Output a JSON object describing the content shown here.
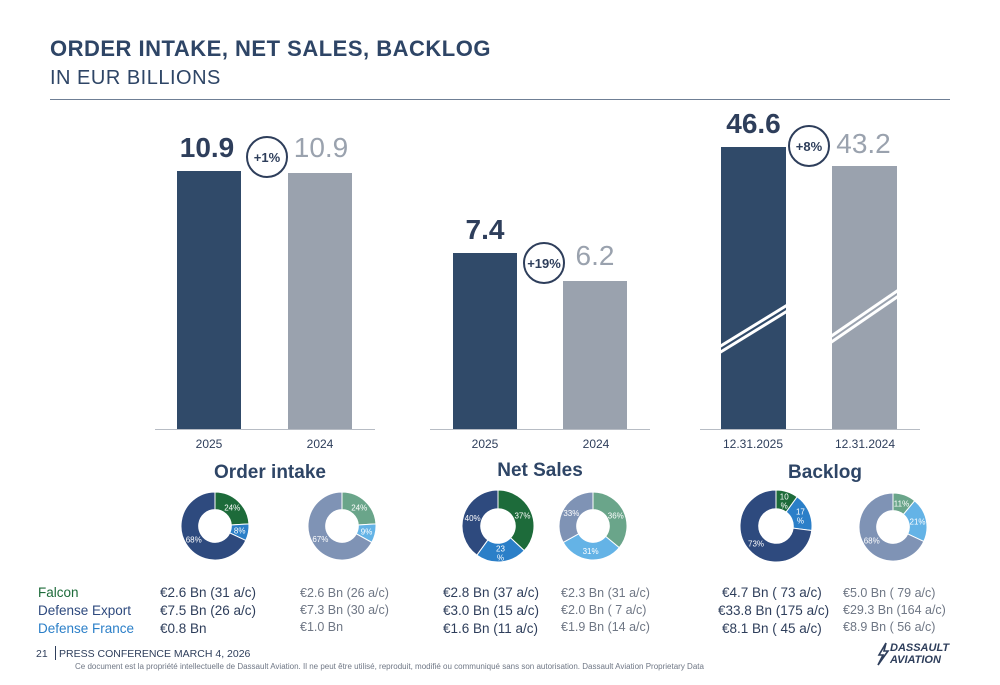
{
  "header": {
    "title": "ORDER INTAKE, NET SALES, BACKLOG",
    "subtitle": "IN EUR BILLIONS"
  },
  "chart_data": [
    {
      "type": "bar",
      "name": "Order intake",
      "categories": [
        "2025",
        "2024"
      ],
      "values": [
        10.9,
        10.9
      ],
      "value_labels": [
        "10.9",
        "10.9"
      ],
      "change": "+1%"
    },
    {
      "type": "bar",
      "name": "Net Sales",
      "categories": [
        "2025",
        "2024"
      ],
      "values": [
        7.4,
        6.2
      ],
      "value_labels": [
        "7.4",
        "6.2"
      ],
      "change": "+19%"
    },
    {
      "type": "bar",
      "name": "Backlog",
      "categories": [
        "12.31.2025",
        "12.31.2024"
      ],
      "values": [
        46.6,
        43.2
      ],
      "value_labels": [
        "46.6",
        "43.2"
      ],
      "change": "+8%",
      "axis_break": true
    },
    {
      "type": "pie",
      "chart": "Order intake 2025",
      "slices": [
        {
          "label": "24%",
          "value": 24
        },
        {
          "label": "8%",
          "value": 8
        },
        {
          "label": "68%",
          "value": 68
        }
      ]
    },
    {
      "type": "pie",
      "chart": "Order intake 2024",
      "slices": [
        {
          "label": "24%",
          "value": 24
        },
        {
          "label": "9%",
          "value": 9
        },
        {
          "label": "67%",
          "value": 67
        }
      ]
    },
    {
      "type": "pie",
      "chart": "Net Sales 2025",
      "slices": [
        {
          "label": "37%",
          "value": 37
        },
        {
          "label": "23 %",
          "value": 23
        },
        {
          "label": "40%",
          "value": 40
        }
      ]
    },
    {
      "type": "pie",
      "chart": "Net Sales 2024",
      "slices": [
        {
          "label": "36%",
          "value": 36
        },
        {
          "label": "31%",
          "value": 31
        },
        {
          "label": "33%",
          "value": 33
        }
      ]
    },
    {
      "type": "pie",
      "chart": "Backlog 2025",
      "slices": [
        {
          "label": "10 %",
          "value": 10
        },
        {
          "label": "17 %",
          "value": 17
        },
        {
          "label": "73%",
          "value": 73
        }
      ]
    },
    {
      "type": "pie",
      "chart": "Backlog 2024",
      "slices": [
        {
          "label": "11%",
          "value": 11
        },
        {
          "label": "21%",
          "value": 21
        },
        {
          "label": "68%",
          "value": 68
        }
      ]
    }
  ],
  "colors": {
    "falcon": "#1d6b3a",
    "defense_export": "#2e4a7e",
    "defense_france": "#2b7fc8",
    "falcon_prev": "#6aa58a",
    "defense_export_prev": "#7f93b5",
    "defense_france_prev": "#64b3e6",
    "bar_current": "#304a69",
    "bar_previous": "#9aa2ae"
  },
  "legend": {
    "falcon": "Falcon",
    "defense_export": "Defense Export",
    "defense_france": "Defense France"
  },
  "amounts": {
    "order_intake": {
      "current": [
        "€2.6 Bn (31 a/c)",
        "€7.5 Bn (26 a/c)",
        "€0.8 Bn"
      ],
      "previous": [
        "€2.6 Bn (26 a/c)",
        "€7.3 Bn (30 a/c)",
        "€1.0 Bn"
      ]
    },
    "net_sales": {
      "current": [
        "€2.8 Bn (37 a/c)",
        "€3.0 Bn (15 a/c)",
        "€1.6 Bn (11 a/c)"
      ],
      "previous": [
        "€2.3 Bn (31 a/c)",
        "€2.0 Bn (  7 a/c)",
        "€1.9 Bn (14 a/c)"
      ]
    },
    "backlog": {
      "current": [
        "€4.7 Bn (  73 a/c)",
        "€33.8 Bn (175 a/c)",
        "€8.1 Bn (  45 a/c)"
      ],
      "previous": [
        "€5.0 Bn (    79 a/c)",
        "€29.3 Bn (164 a/c)",
        "€8.9 Bn (  56 a/c)"
      ]
    }
  },
  "footer": {
    "page_number": "21",
    "event": "PRESS CONFERENCE MARCH 4, 2026",
    "disclaimer": "Ce document est la propriété intellectuelle de Dassault Aviation. Il ne peut être utilisé, reproduit, modifié ou communiqué sans son autorisation. Dassault Aviation Proprietary Data",
    "logo_line1": "DASSAULT",
    "logo_line2": "AVIATION"
  }
}
